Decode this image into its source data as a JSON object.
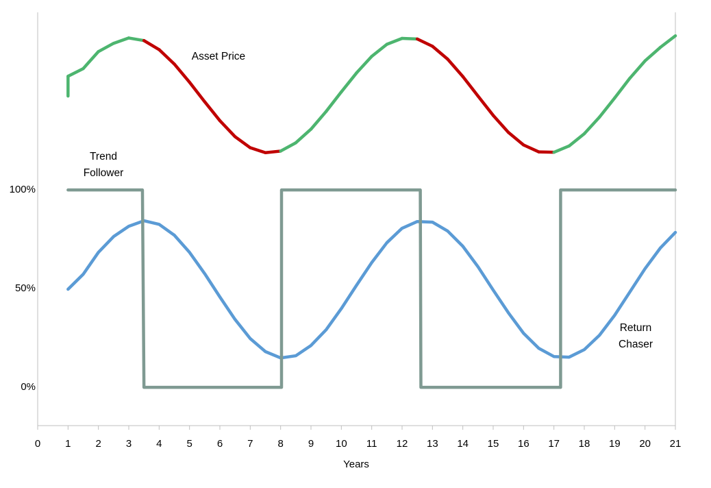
{
  "chart_data": {
    "type": "line",
    "xlabel": "Years",
    "xlim": [
      0,
      21
    ],
    "xticks": [
      0,
      1,
      2,
      3,
      4,
      5,
      6,
      7,
      8,
      9,
      10,
      11,
      12,
      13,
      14,
      15,
      16,
      17,
      18,
      19,
      20,
      21
    ],
    "ylim": [
      -19.4,
      190
    ],
    "yticks": [
      {
        "value": 0,
        "label": "0%"
      },
      {
        "value": 50,
        "label": "50%"
      },
      {
        "value": 100,
        "label": "100%"
      }
    ],
    "grid": false,
    "series": [
      {
        "name": "Asset Price",
        "color": "#4db56f",
        "x": [
          1,
          1,
          1.5,
          2,
          2.5,
          3,
          3.5,
          4,
          4.5,
          5,
          5.5,
          6,
          6.5,
          7,
          7.5,
          8,
          8.5,
          9,
          9.5,
          10,
          10.5,
          11,
          11.5,
          12,
          12.5,
          13,
          13.5,
          14,
          14.5,
          15,
          15.5,
          16,
          16.5,
          17,
          17.5,
          18,
          18.5,
          19,
          19.5,
          20,
          20.5,
          21
        ],
        "values": [
          147.6,
          157.6,
          161.5,
          170.1,
          174.3,
          177.0,
          175.7,
          171.1,
          163.8,
          154.6,
          144.7,
          135.1,
          127.0,
          121.4,
          118.9,
          119.7,
          123.9,
          130.8,
          139.8,
          149.7,
          159.3,
          167.7,
          173.8,
          176.8,
          176.5,
          172.8,
          166.3,
          157.5,
          147.6,
          137.8,
          129.2,
          122.8,
          119.3,
          119.1,
          122.3,
          128.5,
          136.9,
          146.6,
          156.6,
          165.4,
          172.2,
          178.1
        ],
        "segment_colors": [
          "#4db56f",
          "#4db56f",
          "#4db56f",
          "#4db56f",
          "#4db56f",
          "#4db56f",
          "#c00000",
          "#c00000",
          "#c00000",
          "#c00000",
          "#c00000",
          "#c00000",
          "#c00000",
          "#c00000",
          "#c00000",
          "#4db56f",
          "#4db56f",
          "#4db56f",
          "#4db56f",
          "#4db56f",
          "#4db56f",
          "#4db56f",
          "#4db56f",
          "#4db56f",
          "#c00000",
          "#c00000",
          "#c00000",
          "#c00000",
          "#c00000",
          "#c00000",
          "#c00000",
          "#c00000",
          "#c00000",
          "#4db56f",
          "#4db56f",
          "#4db56f",
          "#4db56f",
          "#4db56f",
          "#4db56f",
          "#4db56f",
          "#4db56f"
        ]
      },
      {
        "name": "Return Chaser",
        "color": "#5b9bd5",
        "x": [
          1,
          1.5,
          2,
          2.5,
          3,
          3.5,
          4,
          4.5,
          5,
          5.5,
          6,
          6.5,
          7,
          7.5,
          8,
          8.5,
          9,
          9.5,
          10,
          10.5,
          11,
          11.5,
          12,
          12.5,
          13,
          13.5,
          14,
          14.5,
          15,
          15.5,
          16,
          16.5,
          17,
          17.5,
          18,
          18.5,
          19,
          19.5,
          20,
          20.5,
          21
        ],
        "values": [
          49.7,
          57.3,
          68.4,
          76.4,
          81.6,
          84.4,
          82.6,
          77.1,
          68.4,
          57.6,
          45.8,
          34.4,
          24.7,
          18.1,
          14.9,
          16.0,
          21.2,
          29.2,
          39.9,
          51.7,
          63.2,
          73.3,
          80.6,
          84.0,
          83.7,
          79.2,
          71.5,
          61.1,
          49.3,
          37.8,
          27.4,
          19.8,
          15.6,
          15.3,
          19.1,
          26.4,
          36.5,
          48.3,
          60.1,
          70.5,
          78.5
        ]
      },
      {
        "name": "Trend Follower",
        "color": "#7f9a92",
        "x": [
          1,
          3.45,
          3.5,
          8.03,
          8.03,
          12.6,
          12.62,
          17.22,
          17.22,
          21
        ],
        "values": [
          100,
          100,
          0,
          0,
          100,
          100,
          0,
          0,
          100,
          100
        ]
      }
    ]
  }
}
